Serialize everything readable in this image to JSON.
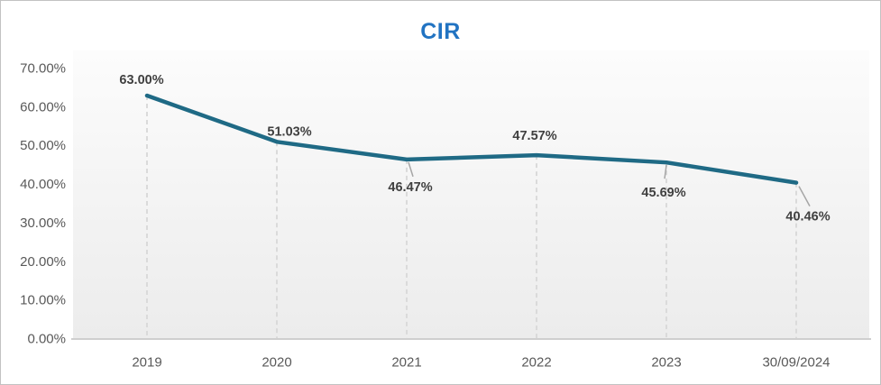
{
  "frame": {
    "border_color": "#c2c2c2",
    "background": "#ffffff"
  },
  "chart_data": {
    "type": "line",
    "title": "CIR",
    "title_color": "#2173c2",
    "categories": [
      "2019",
      "2020",
      "2021",
      "2022",
      "2023",
      "30/09/2024"
    ],
    "values": [
      63.0,
      51.03,
      46.47,
      47.57,
      45.69,
      40.46
    ],
    "data_labels": [
      "63.00%",
      "51.03%",
      "46.47%",
      "47.57%",
      "45.69%",
      "40.46%"
    ],
    "label_positions": [
      "above",
      "above",
      "below",
      "above",
      "below",
      "below-right"
    ],
    "leader_lines": [
      false,
      false,
      true,
      false,
      true,
      true
    ],
    "y_ticks": [
      "70.00%",
      "60.00%",
      "50.00%",
      "40.00%",
      "30.00%",
      "20.00%",
      "10.00%",
      "0.00%"
    ],
    "y_tick_values": [
      70,
      60,
      50,
      40,
      30,
      20,
      10,
      0
    ],
    "ylim": [
      0,
      70
    ],
    "xlabel": "",
    "ylabel": "",
    "grid": "off",
    "legend": "none",
    "drop_lines": "dashed",
    "line_color": "#1f6a85",
    "data_label_color": "#404040",
    "axis_label_color": "#595959",
    "drop_line_color": "#d7d7d7",
    "leader_line_color": "#a6a6a6",
    "axis_line_color": "#cfcfcf",
    "plot_fill_top": "#fcfcfc",
    "plot_fill_bottom": "#ececec"
  }
}
